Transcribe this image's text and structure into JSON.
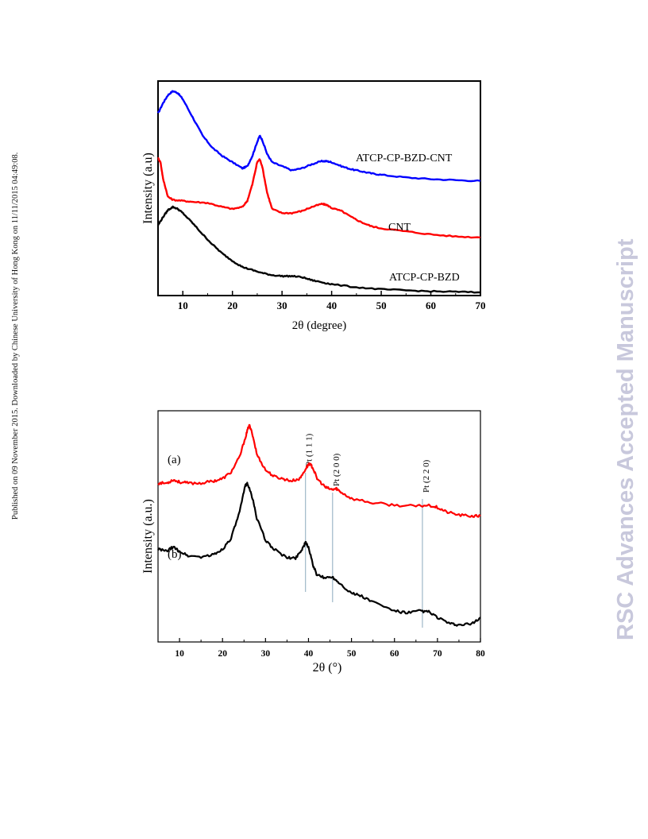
{
  "sidebar": {
    "published_text": "Published on 09 November 2015. Downloaded by Chinese University of Hong Kong on 11/11/2015 04:49:08.",
    "watermark_text": "RSC Advances Accepted Manuscript"
  },
  "chart_data": [
    {
      "type": "line",
      "title": "",
      "xlabel": "2θ (degree)",
      "ylabel": "Intensity (a.u)",
      "xlim": [
        5,
        70
      ],
      "xticks": [
        10,
        20,
        30,
        40,
        50,
        60,
        70
      ],
      "yticks_shown": false,
      "grid": false,
      "series": [
        {
          "name": "ATCP-CP-BZD-CNT",
          "color": "#0000ff",
          "points": [
            [
              5,
              0.88
            ],
            [
              6,
              0.93
            ],
            [
              7,
              0.97
            ],
            [
              8,
              0.99
            ],
            [
              9,
              0.98
            ],
            [
              10,
              0.95
            ],
            [
              12,
              0.86
            ],
            [
              14,
              0.77
            ],
            [
              16,
              0.71
            ],
            [
              18,
              0.67
            ],
            [
              20,
              0.64
            ],
            [
              22,
              0.61
            ],
            [
              23,
              0.62
            ],
            [
              24,
              0.67
            ],
            [
              25,
              0.74
            ],
            [
              25.5,
              0.77
            ],
            [
              26,
              0.75
            ],
            [
              27,
              0.68
            ],
            [
              28,
              0.64
            ],
            [
              30,
              0.62
            ],
            [
              32,
              0.6
            ],
            [
              34,
              0.61
            ],
            [
              36,
              0.63
            ],
            [
              38,
              0.645
            ],
            [
              39,
              0.645
            ],
            [
              40,
              0.64
            ],
            [
              42,
              0.62
            ],
            [
              44,
              0.605
            ],
            [
              46,
              0.595
            ],
            [
              48,
              0.585
            ],
            [
              50,
              0.578
            ],
            [
              55,
              0.565
            ],
            [
              60,
              0.557
            ],
            [
              65,
              0.552
            ],
            [
              70,
              0.548
            ]
          ]
        },
        {
          "name": "CNT",
          "color": "#ff0000",
          "points": [
            [
              5,
              0.66
            ],
            [
              5.5,
              0.64
            ],
            [
              6,
              0.56
            ],
            [
              7,
              0.47
            ],
            [
              8,
              0.455
            ],
            [
              10,
              0.45
            ],
            [
              12,
              0.445
            ],
            [
              15,
              0.44
            ],
            [
              18,
              0.42
            ],
            [
              20,
              0.41
            ],
            [
              22,
              0.42
            ],
            [
              23,
              0.45
            ],
            [
              24,
              0.53
            ],
            [
              25,
              0.64
            ],
            [
              25.5,
              0.655
            ],
            [
              26,
              0.62
            ],
            [
              27,
              0.49
            ],
            [
              28,
              0.41
            ],
            [
              30,
              0.39
            ],
            [
              32,
              0.39
            ],
            [
              34,
              0.4
            ],
            [
              36,
              0.42
            ],
            [
              38,
              0.435
            ],
            [
              39,
              0.43
            ],
            [
              40,
              0.415
            ],
            [
              42,
              0.4
            ],
            [
              44,
              0.37
            ],
            [
              46,
              0.345
            ],
            [
              48,
              0.325
            ],
            [
              50,
              0.315
            ],
            [
              55,
              0.3
            ],
            [
              60,
              0.285
            ],
            [
              65,
              0.275
            ],
            [
              70,
              0.27
            ]
          ]
        },
        {
          "name": "ATCP-CP-BZD",
          "color": "#000000",
          "points": [
            [
              5,
              0.33
            ],
            [
              6,
              0.37
            ],
            [
              7,
              0.405
            ],
            [
              8,
              0.42
            ],
            [
              9,
              0.41
            ],
            [
              10,
              0.39
            ],
            [
              12,
              0.34
            ],
            [
              14,
              0.285
            ],
            [
              16,
              0.235
            ],
            [
              18,
              0.19
            ],
            [
              20,
              0.155
            ],
            [
              22,
              0.125
            ],
            [
              24,
              0.11
            ],
            [
              26,
              0.095
            ],
            [
              28,
              0.085
            ],
            [
              30,
              0.08
            ],
            [
              32,
              0.08
            ],
            [
              34,
              0.075
            ],
            [
              36,
              0.06
            ],
            [
              38,
              0.05
            ],
            [
              40,
              0.04
            ],
            [
              45,
              0.025
            ],
            [
              50,
              0.015
            ],
            [
              55,
              0.01
            ],
            [
              60,
              0.005
            ],
            [
              65,
              0.003
            ],
            [
              70,
              0.0
            ]
          ]
        }
      ],
      "annotations": [
        "ATCP-CP-BZD-CNT",
        "CNT",
        "ATCP-CP-BZD"
      ]
    },
    {
      "type": "line",
      "title": "",
      "xlabel": "2θ (°)",
      "ylabel": "Intensity (a.u.)",
      "xlim": [
        5,
        80
      ],
      "xticks": [
        10,
        20,
        30,
        40,
        50,
        60,
        70,
        80
      ],
      "yticks_shown": false,
      "grid": false,
      "series": [
        {
          "name": "(a)",
          "color": "#ff0000",
          "points": [
            [
              5,
              0.7
            ],
            [
              7,
              0.7
            ],
            [
              8.5,
              0.715
            ],
            [
              10,
              0.705
            ],
            [
              12,
              0.7
            ],
            [
              15,
              0.7
            ],
            [
              18,
              0.71
            ],
            [
              20,
              0.72
            ],
            [
              22,
              0.75
            ],
            [
              24,
              0.82
            ],
            [
              25.5,
              0.92
            ],
            [
              26.2,
              0.965
            ],
            [
              27,
              0.92
            ],
            [
              28,
              0.83
            ],
            [
              30,
              0.76
            ],
            [
              32,
              0.73
            ],
            [
              34,
              0.72
            ],
            [
              36,
              0.71
            ],
            [
              38,
              0.72
            ],
            [
              39.5,
              0.77
            ],
            [
              40.2,
              0.79
            ],
            [
              41,
              0.77
            ],
            [
              42,
              0.72
            ],
            [
              44,
              0.68
            ],
            [
              45.5,
              0.67
            ],
            [
              46.5,
              0.675
            ],
            [
              47.5,
              0.66
            ],
            [
              50,
              0.63
            ],
            [
              55,
              0.61
            ],
            [
              60,
              0.6
            ],
            [
              65,
              0.595
            ],
            [
              68,
              0.6
            ],
            [
              70,
              0.59
            ],
            [
              72,
              0.57
            ],
            [
              75,
              0.555
            ],
            [
              78,
              0.55
            ],
            [
              80,
              0.55
            ]
          ]
        },
        {
          "name": "(b)",
          "color": "#000000",
          "points": [
            [
              5,
              0.4
            ],
            [
              7,
              0.39
            ],
            [
              8.5,
              0.41
            ],
            [
              10,
              0.39
            ],
            [
              12,
              0.37
            ],
            [
              15,
              0.365
            ],
            [
              18,
              0.375
            ],
            [
              20,
              0.4
            ],
            [
              22,
              0.45
            ],
            [
              24,
              0.57
            ],
            [
              25.3,
              0.69
            ],
            [
              25.8,
              0.7
            ],
            [
              27,
              0.63
            ],
            [
              28,
              0.54
            ],
            [
              30,
              0.44
            ],
            [
              32,
              0.4
            ],
            [
              35,
              0.36
            ],
            [
              37,
              0.36
            ],
            [
              38.5,
              0.4
            ],
            [
              39.3,
              0.43
            ],
            [
              40,
              0.41
            ],
            [
              41,
              0.33
            ],
            [
              42,
              0.28
            ],
            [
              44,
              0.27
            ],
            [
              45.5,
              0.275
            ],
            [
              47,
              0.25
            ],
            [
              50,
              0.2
            ],
            [
              52,
              0.19
            ],
            [
              55,
              0.16
            ],
            [
              60,
              0.12
            ],
            [
              63,
              0.11
            ],
            [
              66,
              0.12
            ],
            [
              68,
              0.115
            ],
            [
              70,
              0.09
            ],
            [
              73,
              0.06
            ],
            [
              75,
              0.055
            ],
            [
              78,
              0.06
            ],
            [
              80,
              0.09
            ]
          ]
        }
      ],
      "reference_lines": [
        {
          "label": "Pt (1 1 1)",
          "x": 39.3
        },
        {
          "label": "Pt (2 0 0)",
          "x": 45.6
        },
        {
          "label": "Pt (2 2 0)",
          "x": 66.5
        }
      ],
      "series_labels": [
        "(a)",
        "(b)"
      ]
    }
  ]
}
